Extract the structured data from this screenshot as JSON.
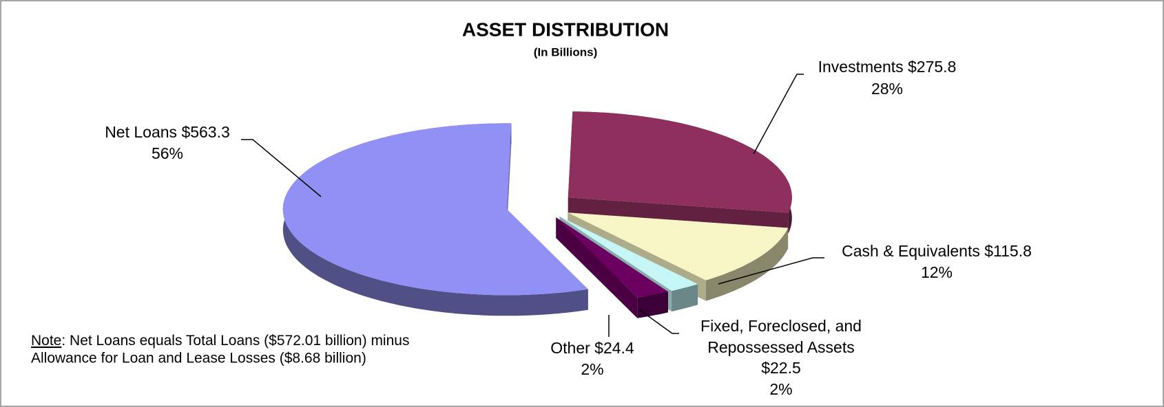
{
  "chart_data": {
    "type": "pie3d",
    "title": "ASSET DISTRIBUTION",
    "subtitle": "(In Billions)",
    "categories": [
      "Investments",
      "Cash & Equivalents",
      "Fixed, Foreclosed, and Repossessed Assets",
      "Other",
      "Net Loans"
    ],
    "values": [
      275.8,
      115.8,
      22.5,
      24.4,
      563.3
    ],
    "value_labels": [
      "$275.8",
      "$115.8",
      "$22.5",
      "$24.4",
      "$563.3"
    ],
    "percent_labels": [
      "28%",
      "12%",
      "2%",
      "2%",
      "56%"
    ],
    "colors": [
      "#8e2f5e",
      "#f7f5c5",
      "#c5f5f5",
      "#6b0060",
      "#9191f5"
    ],
    "note": {
      "label": "Note",
      "lines": [
        ": Net Loans equals Total Loans ($572.01 billion) minus",
        "Allowance for Loan and Lease Losses ($8.68 billion)"
      ]
    }
  }
}
